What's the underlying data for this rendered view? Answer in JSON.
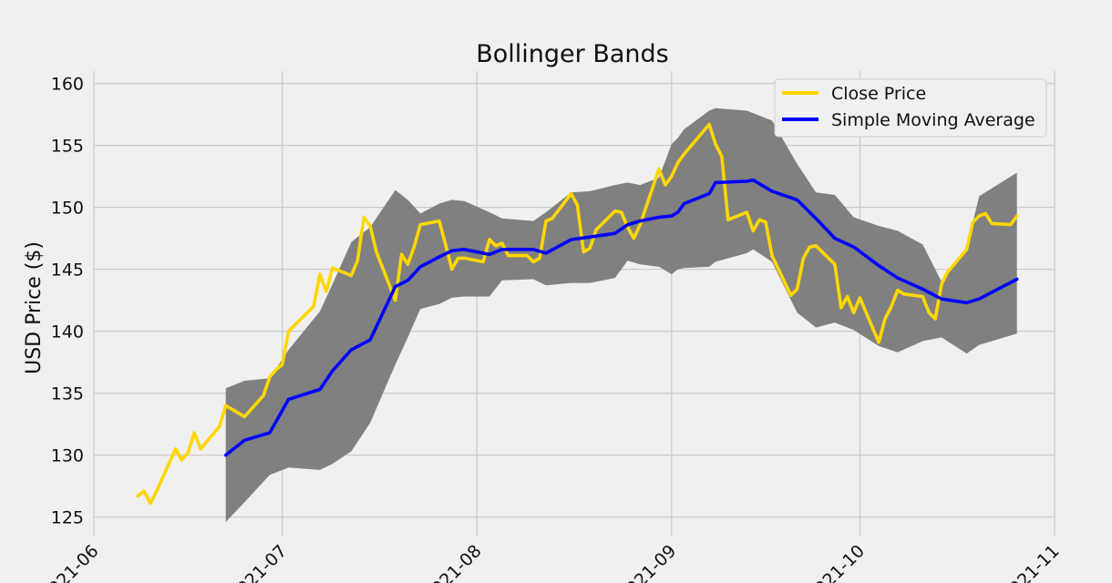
{
  "chart_data": {
    "type": "line",
    "title": "Bollinger Bands",
    "xlabel": "",
    "ylabel": "USD Price ($)",
    "x_ticks": [
      "2021-06",
      "2021-07",
      "2021-08",
      "2021-09",
      "2021-10",
      "2021-11"
    ],
    "y_ticks": [
      125,
      130,
      135,
      140,
      145,
      150,
      155,
      160
    ],
    "xlim": [
      "2021-06-01",
      "2021-11-01"
    ],
    "ylim": [
      123.5,
      161
    ],
    "grid": true,
    "legend_position": "top-right",
    "colors": {
      "close": "#FFD700",
      "sma": "#0000FF",
      "band": "#808080",
      "background": "#f0f0f0",
      "grid": "#cbcbcb"
    },
    "series": [
      {
        "name": "Close Price",
        "x": [
          "2021-06-08",
          "2021-06-09",
          "2021-06-10",
          "2021-06-11",
          "2021-06-14",
          "2021-06-15",
          "2021-06-16",
          "2021-06-17",
          "2021-06-18",
          "2021-06-21",
          "2021-06-22",
          "2021-06-23",
          "2021-06-24",
          "2021-06-25",
          "2021-06-28",
          "2021-06-29",
          "2021-06-30",
          "2021-07-01",
          "2021-07-02",
          "2021-07-06",
          "2021-07-07",
          "2021-07-08",
          "2021-07-09",
          "2021-07-12",
          "2021-07-13",
          "2021-07-14",
          "2021-07-15",
          "2021-07-16",
          "2021-07-19",
          "2021-07-20",
          "2021-07-21",
          "2021-07-22",
          "2021-07-23",
          "2021-07-26",
          "2021-07-27",
          "2021-07-28",
          "2021-07-29",
          "2021-07-30",
          "2021-08-02",
          "2021-08-03",
          "2021-08-04",
          "2021-08-05",
          "2021-08-06",
          "2021-08-09",
          "2021-08-10",
          "2021-08-11",
          "2021-08-12",
          "2021-08-13",
          "2021-08-16",
          "2021-08-17",
          "2021-08-18",
          "2021-08-19",
          "2021-08-20",
          "2021-08-23",
          "2021-08-24",
          "2021-08-25",
          "2021-08-26",
          "2021-08-27",
          "2021-08-30",
          "2021-08-31",
          "2021-09-01",
          "2021-09-02",
          "2021-09-03",
          "2021-09-07",
          "2021-09-08",
          "2021-09-09",
          "2021-09-10",
          "2021-09-13",
          "2021-09-14",
          "2021-09-15",
          "2021-09-16",
          "2021-09-17",
          "2021-09-20",
          "2021-09-21",
          "2021-09-22",
          "2021-09-23",
          "2021-09-24",
          "2021-09-27",
          "2021-09-28",
          "2021-09-29",
          "2021-09-30",
          "2021-10-01",
          "2021-10-04",
          "2021-10-05",
          "2021-10-06",
          "2021-10-07",
          "2021-10-08",
          "2021-10-11",
          "2021-10-12",
          "2021-10-13",
          "2021-10-14",
          "2021-10-15",
          "2021-10-18",
          "2021-10-19",
          "2021-10-20",
          "2021-10-21",
          "2021-10-22",
          "2021-10-25",
          "2021-10-26"
        ],
        "values": [
          126.7,
          127.1,
          126.1,
          127.1,
          130.5,
          129.6,
          130.2,
          131.8,
          130.5,
          132.3,
          134.0,
          133.7,
          133.4,
          133.1,
          134.8,
          136.3,
          136.9,
          137.3,
          140.0,
          142.0,
          144.6,
          143.2,
          145.1,
          144.5,
          145.7,
          149.2,
          148.5,
          146.4,
          142.5,
          146.2,
          145.4,
          146.8,
          148.6,
          148.9,
          147.0,
          145.0,
          145.9,
          145.9,
          145.6,
          147.4,
          146.9,
          147.1,
          146.1,
          146.1,
          145.6,
          145.9,
          148.9,
          149.1,
          151.1,
          150.2,
          146.4,
          146.7,
          148.2,
          149.7,
          149.6,
          148.4,
          147.5,
          148.6,
          153.1,
          151.8,
          152.5,
          153.6,
          154.3,
          156.7,
          155.1,
          154.1,
          149.0,
          149.6,
          148.1,
          149.0,
          148.8,
          146.1,
          142.9,
          143.4,
          145.9,
          146.8,
          146.9,
          145.4,
          141.9,
          142.8,
          141.5,
          142.7,
          139.1,
          141.0,
          142.0,
          143.3,
          143.0,
          142.8,
          141.5,
          141.0,
          143.8,
          144.8,
          146.6,
          148.8,
          149.3,
          149.5,
          148.7,
          148.6,
          149.3
        ]
      },
      {
        "name": "Simple Moving Average",
        "x": [
          "2021-06-22",
          "2021-06-25",
          "2021-06-29",
          "2021-07-02",
          "2021-07-07",
          "2021-07-09",
          "2021-07-12",
          "2021-07-15",
          "2021-07-19",
          "2021-07-21",
          "2021-07-23",
          "2021-07-26",
          "2021-07-28",
          "2021-07-30",
          "2021-08-03",
          "2021-08-05",
          "2021-08-10",
          "2021-08-12",
          "2021-08-16",
          "2021-08-19",
          "2021-08-23",
          "2021-08-25",
          "2021-08-27",
          "2021-08-30",
          "2021-09-01",
          "2021-09-02",
          "2021-09-03",
          "2021-09-07",
          "2021-09-08",
          "2021-09-13",
          "2021-09-14",
          "2021-09-17",
          "2021-09-21",
          "2021-09-24",
          "2021-09-27",
          "2021-09-30",
          "2021-10-04",
          "2021-10-07",
          "2021-10-11",
          "2021-10-14",
          "2021-10-18",
          "2021-10-20",
          "2021-10-26"
        ],
        "values": [
          130.0,
          131.2,
          131.8,
          134.5,
          135.3,
          136.8,
          138.5,
          139.3,
          143.6,
          144.1,
          145.2,
          146.0,
          146.5,
          146.6,
          146.2,
          146.6,
          146.6,
          146.3,
          147.4,
          147.6,
          147.9,
          148.6,
          148.9,
          149.2,
          149.3,
          149.6,
          150.3,
          151.1,
          152.0,
          152.1,
          152.2,
          151.3,
          150.6,
          149.1,
          147.5,
          146.8,
          145.3,
          144.3,
          143.4,
          142.6,
          142.3,
          142.6,
          144.2
        ]
      },
      {
        "name": "Upper Band",
        "x": [
          "2021-06-22",
          "2021-06-25",
          "2021-06-29",
          "2021-07-02",
          "2021-07-07",
          "2021-07-09",
          "2021-07-12",
          "2021-07-15",
          "2021-07-19",
          "2021-07-21",
          "2021-07-23",
          "2021-07-26",
          "2021-07-28",
          "2021-07-30",
          "2021-08-03",
          "2021-08-05",
          "2021-08-10",
          "2021-08-12",
          "2021-08-16",
          "2021-08-19",
          "2021-08-23",
          "2021-08-25",
          "2021-08-27",
          "2021-08-30",
          "2021-09-01",
          "2021-09-02",
          "2021-09-03",
          "2021-09-07",
          "2021-09-08",
          "2021-09-13",
          "2021-09-14",
          "2021-09-17",
          "2021-09-21",
          "2021-09-24",
          "2021-09-27",
          "2021-09-30",
          "2021-10-04",
          "2021-10-07",
          "2021-10-11",
          "2021-10-14",
          "2021-10-18",
          "2021-10-20",
          "2021-10-26"
        ],
        "values": [
          135.4,
          136.0,
          136.2,
          138.5,
          141.6,
          143.8,
          147.2,
          148.4,
          151.4,
          150.6,
          149.5,
          150.3,
          150.6,
          150.5,
          149.6,
          149.1,
          148.9,
          149.6,
          151.2,
          151.3,
          151.8,
          152.0,
          151.8,
          152.4,
          155.1,
          155.6,
          156.3,
          157.8,
          158.0,
          157.8,
          157.6,
          157.0,
          153.5,
          151.2,
          151.0,
          149.2,
          148.5,
          148.1,
          147.0,
          144.0,
          146.8,
          150.9,
          152.8
        ]
      },
      {
        "name": "Lower Band",
        "x": [
          "2021-06-22",
          "2021-06-25",
          "2021-06-29",
          "2021-07-02",
          "2021-07-07",
          "2021-07-09",
          "2021-07-12",
          "2021-07-15",
          "2021-07-19",
          "2021-07-21",
          "2021-07-23",
          "2021-07-26",
          "2021-07-28",
          "2021-07-30",
          "2021-08-03",
          "2021-08-05",
          "2021-08-10",
          "2021-08-12",
          "2021-08-16",
          "2021-08-19",
          "2021-08-23",
          "2021-08-25",
          "2021-08-27",
          "2021-08-30",
          "2021-09-01",
          "2021-09-02",
          "2021-09-03",
          "2021-09-07",
          "2021-09-08",
          "2021-09-13",
          "2021-09-14",
          "2021-09-17",
          "2021-09-21",
          "2021-09-24",
          "2021-09-27",
          "2021-09-30",
          "2021-10-04",
          "2021-10-07",
          "2021-10-11",
          "2021-10-14",
          "2021-10-18",
          "2021-10-20",
          "2021-10-26"
        ],
        "values": [
          124.6,
          126.2,
          128.4,
          129.0,
          128.8,
          129.3,
          130.3,
          132.6,
          137.3,
          139.5,
          141.8,
          142.2,
          142.7,
          142.8,
          142.8,
          144.1,
          144.2,
          143.7,
          143.9,
          143.9,
          144.3,
          145.7,
          145.4,
          145.2,
          144.6,
          145.0,
          145.1,
          145.2,
          145.6,
          146.3,
          146.6,
          145.6,
          141.5,
          140.3,
          140.7,
          140.1,
          138.8,
          138.3,
          139.2,
          139.5,
          138.2,
          138.9,
          139.8
        ]
      }
    ]
  }
}
